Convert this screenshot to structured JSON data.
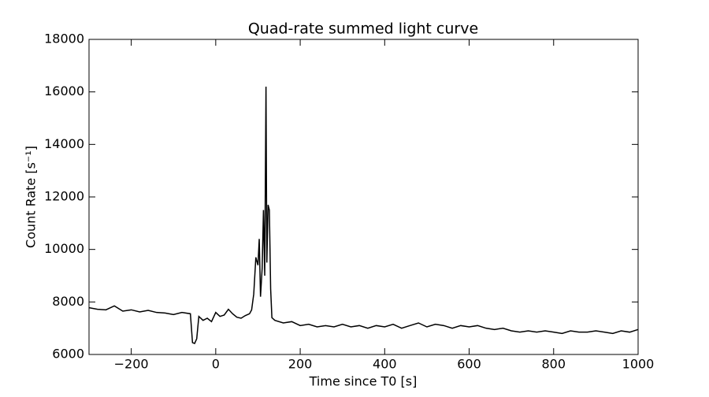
{
  "chart_data": {
    "type": "line",
    "title": "Quad-rate summed light curve",
    "x_label": "Time since T0 [s]",
    "y_label": "Count Rate [s⁻¹]",
    "x": [
      -300,
      -280,
      -260,
      -240,
      -220,
      -200,
      -180,
      -160,
      -140,
      -120,
      -100,
      -80,
      -60,
      -55,
      -50,
      -45,
      -40,
      -30,
      -20,
      -10,
      0,
      10,
      20,
      30,
      40,
      50,
      60,
      70,
      80,
      85,
      90,
      95,
      100,
      103,
      106,
      110,
      113,
      116,
      119,
      121,
      124,
      127,
      130,
      133,
      140,
      160,
      180,
      200,
      220,
      240,
      260,
      280,
      300,
      320,
      340,
      360,
      380,
      400,
      420,
      440,
      460,
      480,
      500,
      520,
      540,
      560,
      580,
      600,
      620,
      640,
      660,
      680,
      700,
      720,
      740,
      760,
      780,
      800,
      820,
      840,
      860,
      880,
      900,
      920,
      940,
      960,
      980,
      1000
    ],
    "series": [
      {
        "color": "#000000",
        "values": [
          7780,
          7720,
          7700,
          7850,
          7650,
          7700,
          7620,
          7680,
          7600,
          7580,
          7520,
          7600,
          7550,
          6450,
          6420,
          6600,
          7450,
          7300,
          7380,
          7250,
          7600,
          7450,
          7500,
          7720,
          7550,
          7420,
          7380,
          7480,
          7550,
          7700,
          8300,
          9700,
          9400,
          10400,
          8200,
          9300,
          11500,
          9000,
          16200,
          9500,
          11700,
          11500,
          8500,
          7400,
          7300,
          7200,
          7250,
          7100,
          7150,
          7050,
          7100,
          7050,
          7150,
          7050,
          7100,
          7000,
          7100,
          7050,
          7150,
          7000,
          7100,
          7200,
          7050,
          7150,
          7100,
          7000,
          7100,
          7050,
          7100,
          7000,
          6950,
          7000,
          6900,
          6850,
          6900,
          6850,
          6900,
          6850,
          6800,
          6900,
          6850,
          6850,
          6900,
          6850,
          6800,
          6900,
          6850,
          6950
        ]
      }
    ],
    "xlim": [
      -300,
      1000
    ],
    "ylim": [
      6000,
      18000
    ],
    "xticks": [
      {
        "value": -200,
        "label": "−200"
      },
      0,
      200,
      400,
      600,
      800,
      1000
    ],
    "yticks": [
      6000,
      8000,
      10000,
      12000,
      14000,
      16000,
      18000
    ]
  }
}
